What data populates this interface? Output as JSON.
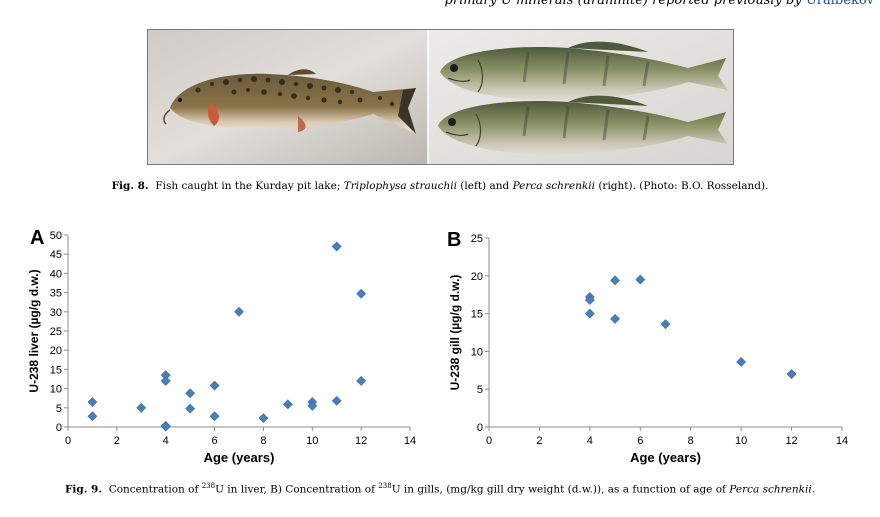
{
  "top_text": {
    "prefix": "primary U minerals (uraninite) reported previously by ",
    "citation": "Uralbekov"
  },
  "figure8": {
    "label": "Fig. 8.",
    "text_a": "Fish caught in the Kurday pit lake; ",
    "species_left": "Triplophysa strauchii",
    "text_b": " (left) and ",
    "species_right": "Perca schrenkii",
    "text_c": " (right). (Photo: B.O. Rosseland)."
  },
  "figure9": {
    "label": "Fig. 9.",
    "text_a": "Concentration of ",
    "sup1": "238",
    "text_b": "U in liver, B) Concentration of ",
    "sup2": "238",
    "text_c": "U in gills, (mg/kg gill dry weight (d.w.)), as a function of age of ",
    "species": "Perca schrenkii",
    "text_d": "."
  },
  "colors": {
    "marker": "#4a7ebb",
    "axis": "#8c8c8c",
    "link": "#1a4f9c"
  },
  "chart_data": [
    {
      "panel": "A",
      "type": "scatter",
      "title": "",
      "xlabel": "Age (years)",
      "ylabel": "U-238 liver (µg/g d.w.)",
      "xlim": [
        0,
        14
      ],
      "ylim": [
        0,
        50
      ],
      "xticks": [
        0,
        2,
        4,
        6,
        8,
        10,
        12,
        14
      ],
      "yticks": [
        0,
        5,
        10,
        15,
        20,
        25,
        30,
        35,
        40,
        45,
        50
      ],
      "grid": false,
      "series": [
        {
          "name": "liver",
          "x": [
            1,
            1,
            3,
            4,
            4,
            4,
            4,
            5,
            5,
            6,
            6,
            7,
            8,
            9,
            10,
            10,
            11,
            11,
            12,
            12
          ],
          "y": [
            6.5,
            2.8,
            5.0,
            13.5,
            12.0,
            0.3,
            0.1,
            8.8,
            4.8,
            10.8,
            2.8,
            30.0,
            2.3,
            5.9,
            6.5,
            5.5,
            47.0,
            6.8,
            34.7,
            12.0
          ]
        }
      ]
    },
    {
      "panel": "B",
      "type": "scatter",
      "title": "",
      "xlabel": "Age (years)",
      "ylabel": "U-238 gill (µg/g d.w.)",
      "xlim": [
        0,
        14
      ],
      "ylim": [
        0,
        25
      ],
      "xticks": [
        0,
        2,
        4,
        6,
        8,
        10,
        12,
        14
      ],
      "yticks": [
        0,
        5,
        10,
        15,
        20,
        25
      ],
      "grid": false,
      "series": [
        {
          "name": "gill",
          "x": [
            4,
            4,
            4,
            5,
            5,
            6,
            7,
            10,
            12
          ],
          "y": [
            17.2,
            16.8,
            15.0,
            19.4,
            14.3,
            19.5,
            13.6,
            8.6,
            7.0
          ]
        }
      ]
    }
  ]
}
